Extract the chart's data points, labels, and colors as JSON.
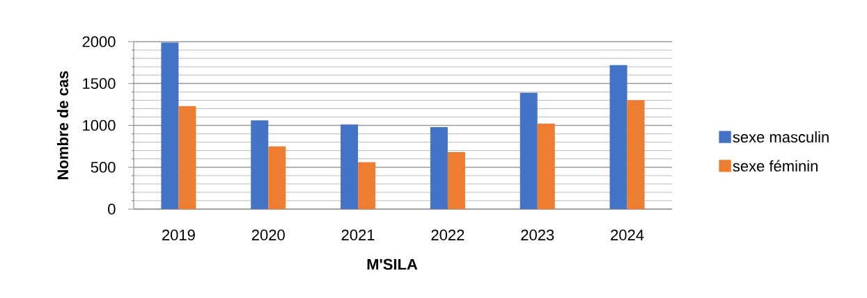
{
  "chart_data": {
    "type": "bar",
    "xlabel": "M'SILA",
    "ylabel": "Nombre de cas",
    "categories": [
      "2019",
      "2020",
      "2021",
      "2022",
      "2023",
      "2024"
    ],
    "series": [
      {
        "name": "sexe masculin",
        "color": "#4472c4",
        "values": [
          1990,
          1060,
          1010,
          980,
          1390,
          1720
        ]
      },
      {
        "name": "sexe féminin",
        "color": "#ed7d31",
        "values": [
          1230,
          750,
          560,
          680,
          1020,
          1300
        ]
      }
    ],
    "ylim": [
      0,
      2000
    ],
    "yticks": [
      0,
      500,
      1000,
      1500,
      2000
    ],
    "grid": "y",
    "legend": "right"
  }
}
